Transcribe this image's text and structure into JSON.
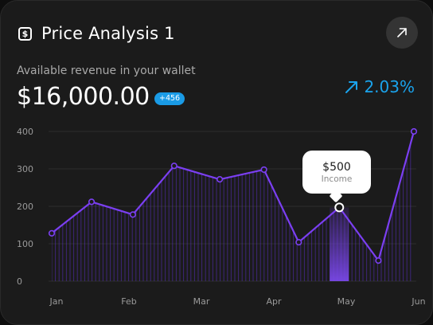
{
  "header": {
    "title": "Price Analysis 1",
    "icon": "dollar-square-icon",
    "action_icon": "arrow-up-right-icon"
  },
  "summary": {
    "subtitle": "Available revenue in your wallet",
    "amount": "$16,000.00",
    "badge": "+456",
    "change": "2.03%",
    "change_icon": "arrow-up-right-icon"
  },
  "tooltip": {
    "value": "$500",
    "label": "Income"
  },
  "colors": {
    "accent": "#1a9be6",
    "line": "#7b3ff2",
    "background": "#1b1b1b"
  },
  "chart_data": {
    "type": "area",
    "x_tick_labels": [
      "Jan",
      "Feb",
      "Mar",
      "Apr",
      "May",
      "Jun"
    ],
    "y_tick_labels": [
      "0",
      "100",
      "200",
      "300",
      "400"
    ],
    "ylim": [
      0,
      400
    ],
    "grid": true,
    "series": [
      {
        "x": [
          0,
          0.55,
          1.12,
          1.69,
          2.32,
          2.93,
          3.41,
          3.97,
          4.51,
          5.0
        ],
        "values": [
          128,
          212,
          178,
          308,
          272,
          298,
          104,
          197,
          55,
          400
        ]
      }
    ],
    "highlight_index": 7
  }
}
